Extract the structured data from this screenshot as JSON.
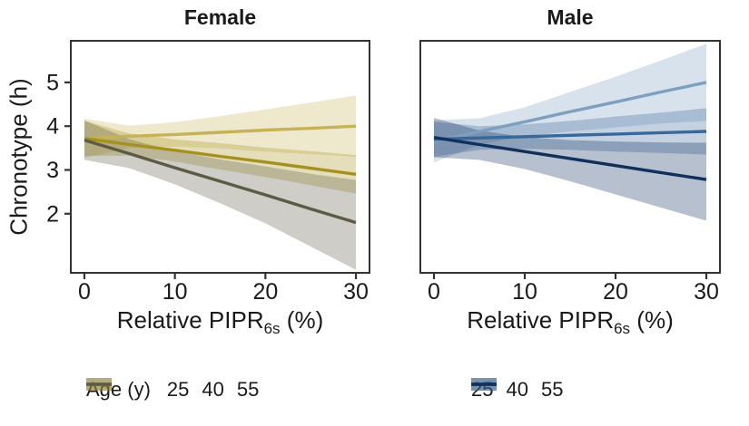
{
  "figure": {
    "background": "#ffffff",
    "text_color": "#1a1a1a",
    "axis_color": "#333333",
    "band_alpha": 0.3
  },
  "ylabel": "Chronotype (h)",
  "xlabel": {
    "pre": "Relative PIPR",
    "sub": "6s",
    "post": " (%)"
  },
  "legend": {
    "title": "Age (y)"
  },
  "chart_data": [
    {
      "type": "line",
      "title": "Female",
      "xlabel": "Relative PIPR_6s (%)",
      "ylabel": "Chronotype (h)",
      "xlim": [
        -1.5,
        31.5
      ],
      "ylim": [
        0.65,
        5.95
      ],
      "xticks": [
        0,
        10,
        20,
        30
      ],
      "yticks": [
        2,
        3,
        4,
        5
      ],
      "show_yticks": true,
      "grid": false,
      "x": [
        0,
        5,
        10,
        15,
        20,
        25,
        30
      ],
      "series": [
        {
          "name": "25",
          "line_color": "#c7b257",
          "values": [
            3.72,
            3.77,
            3.81,
            3.86,
            3.91,
            3.95,
            4.0
          ],
          "upper": [
            4.17,
            4.01,
            4.09,
            4.23,
            4.38,
            4.54,
            4.7
          ],
          "lower": [
            3.27,
            3.51,
            3.53,
            3.49,
            3.42,
            3.36,
            3.3
          ]
        },
        {
          "name": "40",
          "line_color": "#a5921c",
          "values": [
            3.72,
            3.58,
            3.45,
            3.31,
            3.18,
            3.04,
            2.9
          ],
          "upper": [
            4.12,
            3.83,
            3.7,
            3.61,
            3.51,
            3.43,
            3.34
          ],
          "lower": [
            3.32,
            3.33,
            3.19,
            3.01,
            2.84,
            2.65,
            2.46
          ]
        },
        {
          "name": "55",
          "line_color": "#5e5b45",
          "values": [
            3.68,
            3.37,
            3.05,
            2.74,
            2.43,
            2.11,
            1.8
          ],
          "upper": [
            4.13,
            3.7,
            3.43,
            3.24,
            3.08,
            2.91,
            2.77
          ],
          "lower": [
            3.23,
            3.04,
            2.67,
            2.24,
            1.78,
            1.25,
            0.72
          ]
        }
      ]
    },
    {
      "type": "line",
      "title": "Male",
      "xlabel": "Relative PIPR_6s (%)",
      "ylabel": "Chronotype (h)",
      "xlim": [
        -1.5,
        31.5
      ],
      "ylim": [
        0.65,
        5.95
      ],
      "xticks": [
        0,
        10,
        20,
        30
      ],
      "yticks": [
        2,
        3,
        4,
        5
      ],
      "show_yticks": false,
      "grid": false,
      "x": [
        0,
        5,
        10,
        15,
        20,
        25,
        30
      ],
      "series": [
        {
          "name": "25",
          "line_color": "#7ea0c0",
          "values": [
            3.65,
            3.88,
            4.1,
            4.33,
            4.55,
            4.78,
            5.0
          ],
          "upper": [
            4.13,
            4.18,
            4.43,
            4.78,
            5.13,
            5.5,
            5.88
          ],
          "lower": [
            3.17,
            3.58,
            3.77,
            3.88,
            3.97,
            4.06,
            4.12
          ]
        },
        {
          "name": "40",
          "line_color": "#38689a",
          "values": [
            3.7,
            3.73,
            3.76,
            3.79,
            3.82,
            3.85,
            3.88
          ],
          "upper": [
            4.1,
            4.0,
            4.04,
            4.12,
            4.22,
            4.31,
            4.41
          ],
          "lower": [
            3.3,
            3.46,
            3.48,
            3.46,
            3.42,
            3.39,
            3.35
          ]
        },
        {
          "name": "55",
          "line_color": "#12305c",
          "values": [
            3.74,
            3.58,
            3.42,
            3.26,
            3.1,
            2.94,
            2.78
          ],
          "upper": [
            4.19,
            3.9,
            3.75,
            3.68,
            3.65,
            3.63,
            3.62
          ],
          "lower": [
            3.29,
            3.23,
            3.02,
            2.74,
            2.44,
            2.14,
            1.84
          ]
        }
      ]
    }
  ]
}
